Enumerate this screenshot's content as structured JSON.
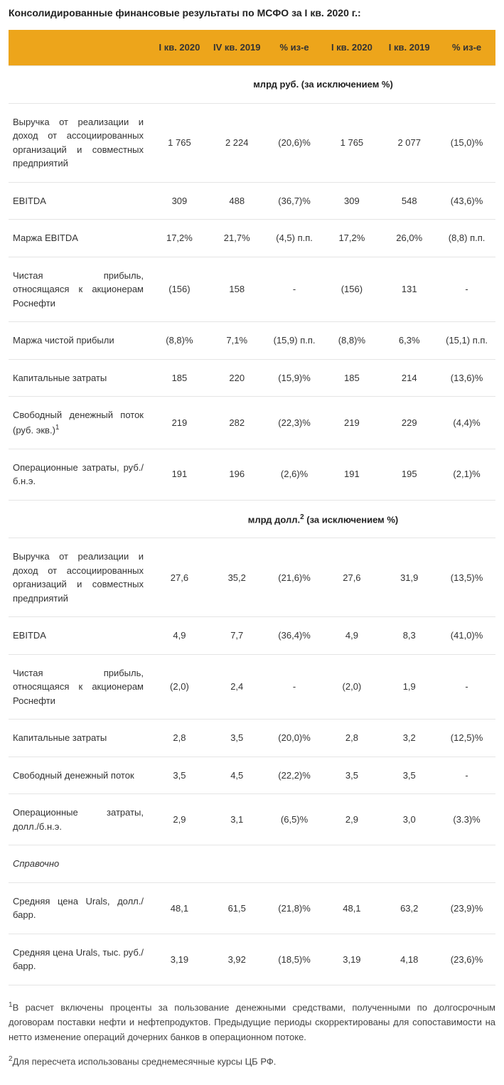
{
  "title": "Консолидированные финансовые результаты по МСФО за I кв. 2020 г.:",
  "colors": {
    "header_bg": "#eda51b",
    "border": "#e5e5e5",
    "text": "#333333"
  },
  "columns": {
    "c1": "I кв. 2020",
    "c2": "IV кв. 2019",
    "c3": "% из-е",
    "c4": "I кв. 2020",
    "c5": "I кв. 2019",
    "c6": "% из-е"
  },
  "section1": "млрд руб. (за исключением %)",
  "section2_pre": "млрд долл.",
  "section2_sup": "2",
  "section2_post": " (за исключением %)",
  "rows_rub": [
    {
      "label": "Выручка от реализации и доход от ассоциированных организаций и совместных предприятий",
      "v": [
        "1 765",
        "2 224",
        "(20,6)%",
        "1 765",
        "2 077",
        "(15,0)%"
      ]
    },
    {
      "label": "EBITDA",
      "v": [
        "309",
        "488",
        "(36,7)%",
        "309",
        "548",
        "(43,6)%"
      ]
    },
    {
      "label": "Маржа EBITDA",
      "v": [
        "17,2%",
        "21,7%",
        "(4,5) п.п.",
        "17,2%",
        "26,0%",
        "(8,8) п.п."
      ]
    },
    {
      "label": "Чистая прибыль, относящаяся к акционерам Роснефти",
      "v": [
        "(156)",
        "158",
        "-",
        "(156)",
        "131",
        "-"
      ]
    },
    {
      "label": "Маржа чистой прибыли",
      "v": [
        "(8,8)%",
        "7,1%",
        "(15,9) п.п.",
        "(8,8)%",
        "6,3%",
        "(15,1) п.п."
      ]
    },
    {
      "label": "Капитальные затраты",
      "v": [
        "185",
        "220",
        "(15,9)%",
        "185",
        "214",
        "(13,6)%"
      ]
    },
    {
      "label_html": "Свободный денежный поток (руб. экв.)<sup>1</sup>",
      "v": [
        "219",
        "282",
        "(22,3)%",
        "219",
        "229",
        "(4,4)%"
      ]
    },
    {
      "label": "Операционные затраты, руб./б.н.э.",
      "v": [
        "191",
        "196",
        "(2,6)%",
        "191",
        "195",
        "(2,1)%"
      ]
    }
  ],
  "rows_usd": [
    {
      "label": "Выручка от реализации и доход от ассоциированных организаций и совместных предприятий",
      "v": [
        "27,6",
        "35,2",
        "(21,6)%",
        "27,6",
        "31,9",
        "(13,5)%"
      ]
    },
    {
      "label": "EBITDA",
      "v": [
        "4,9",
        "7,7",
        "(36,4)%",
        "4,9",
        "8,3",
        "(41,0)%"
      ]
    },
    {
      "label": "Чистая прибыль, относящаяся к акционерам Роснефти",
      "v": [
        "(2,0)",
        "2,4",
        "-",
        "(2,0)",
        "1,9",
        "-"
      ]
    },
    {
      "label": "Капитальные затраты",
      "v": [
        "2,8",
        "3,5",
        "(20,0)%",
        "2,8",
        "3,2",
        "(12,5)%"
      ]
    },
    {
      "label": "Свободный денежный поток",
      "v": [
        "3,5",
        "4,5",
        "(22,2)%",
        "3,5",
        "3,5",
        "-"
      ]
    },
    {
      "label": "Операционные затраты, долл./б.н.э.",
      "v": [
        "2,9",
        "3,1",
        "(6,5)%",
        "2,9",
        "3,0",
        "(3.3)%"
      ]
    }
  ],
  "ref_header": "Справочно",
  "rows_ref": [
    {
      "label": "Средняя цена Urals, долл./барр.",
      "v": [
        "48,1",
        "61,5",
        "(21,8)%",
        "48,1",
        "63,2",
        "(23,9)%"
      ]
    },
    {
      "label": "Средняя цена Urals, тыс. руб./барр.",
      "v": [
        "3,19",
        "3,92",
        "(18,5)%",
        "3,19",
        "4,18",
        "(23,6)%"
      ]
    }
  ],
  "footnotes": {
    "f1_sup": "1",
    "f1": "В расчет включены проценты за пользование денежными средствами, полученными по долгосрочным договорам поставки нефти и нефтепродуктов. Предыдущие периоды скорректированы для сопоставимости на нетто изменение операций дочерних банков в операционном потоке.",
    "f2_sup": "2",
    "f2": "Для пересчета использованы среднемесячные курсы ЦБ РФ."
  }
}
